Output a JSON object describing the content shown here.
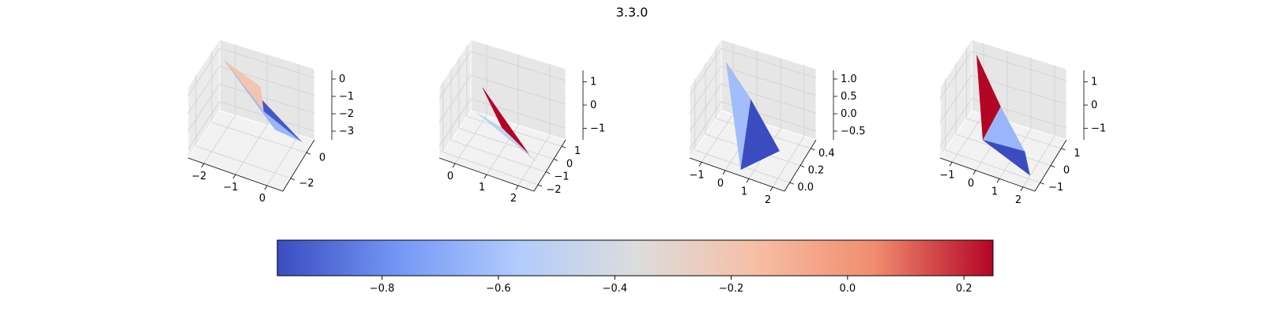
{
  "figure_title": "3.3.0",
  "colormap": "coolwarm",
  "colors": {
    "cmap_stops": [
      "#3b4cc0",
      "#7396f5",
      "#b0cbfc",
      "#dcdddd",
      "#f6bfa6",
      "#f18d6f",
      "#b40426"
    ],
    "pane": "#f2f2f2",
    "grid": "#d0d0d0"
  },
  "chart_data": [
    {
      "type": "surface",
      "panel": 1,
      "x_ticks": [
        "−2",
        "−1",
        "0"
      ],
      "y_ticks": [
        "−2",
        "0"
      ],
      "z_ticks": [
        "0",
        "−1",
        "−2",
        "−3"
      ],
      "zlim": [
        -3.2,
        0.6
      ],
      "faces": [
        {
          "color_value": -0.65,
          "vertices": [
            [
              -2.2,
              -0.8,
              -0.2
            ],
            [
              0.8,
              -2.7,
              -0.3
            ],
            [
              0.9,
              -1.0,
              -2.8
            ]
          ]
        },
        {
          "color_value": -0.95,
          "vertices": [
            [
              -2.2,
              -0.8,
              -0.2
            ],
            [
              -0.2,
              -1.7,
              -0.9
            ],
            [
              0.9,
              -1.0,
              -2.8
            ]
          ]
        },
        {
          "color_value": -0.2,
          "vertices": [
            [
              -2.2,
              -0.8,
              -0.2
            ],
            [
              -0.6,
              -1.2,
              -0.35
            ],
            [
              -0.2,
              -1.7,
              -0.9
            ]
          ]
        }
      ]
    },
    {
      "type": "surface",
      "panel": 2,
      "x_ticks": [
        "0",
        "1",
        "2"
      ],
      "y_ticks": [
        "−2",
        "−1",
        "0",
        "1"
      ],
      "z_ticks": [
        "1",
        "0",
        "−1"
      ],
      "zlim": [
        -1.4,
        1.4
      ],
      "faces": [
        {
          "color_value": 0.25,
          "vertices": [
            [
              0.2,
              -0.6,
              1.3
            ],
            [
              1.8,
              -1.0,
              -0.2
            ],
            [
              0.4,
              0.2,
              -1.0
            ]
          ]
        },
        {
          "color_value": -0.3,
          "vertices": [
            [
              0.4,
              0.2,
              -1.0
            ],
            [
              1.7,
              -0.4,
              -1.1
            ],
            [
              1.8,
              -1.0,
              -0.2
            ]
          ]
        },
        {
          "color_value": -0.5,
          "vertices": [
            [
              -0.6,
              0.6,
              -1.2
            ],
            [
              0.4,
              0.2,
              -1.0
            ],
            [
              1.7,
              -0.4,
              -1.1
            ]
          ]
        }
      ]
    },
    {
      "type": "surface",
      "panel": 3,
      "x_ticks": [
        "−1",
        "0",
        "1",
        "2"
      ],
      "y_ticks": [
        "0.0",
        "0.2",
        "0.4"
      ],
      "z_ticks": [
        "1.0",
        "0.5",
        "0.0",
        "−0.5"
      ],
      "zlim": [
        -0.9,
        1.2
      ],
      "faces": [
        {
          "color_value": 0.25,
          "vertices": [
            [
              -1.1,
              0.35,
              0.7
            ],
            [
              0.0,
              0.2,
              0.65
            ],
            [
              0.2,
              0.25,
              0.35
            ]
          ]
        },
        {
          "color_value": -0.62,
          "vertices": [
            [
              -1.1,
              0.35,
              0.7
            ],
            [
              0.2,
              0.25,
              0.35
            ],
            [
              0.5,
              0.05,
              -0.85
            ]
          ]
        },
        {
          "color_value": -0.98,
          "vertices": [
            [
              0.2,
              0.25,
              0.35
            ],
            [
              2.0,
              0.05,
              0.1
            ],
            [
              0.5,
              0.05,
              -0.85
            ]
          ]
        }
      ]
    },
    {
      "type": "surface",
      "panel": 4,
      "x_ticks": [
        "−1",
        "0",
        "1",
        "2"
      ],
      "y_ticks": [
        "−1",
        "0",
        "1"
      ],
      "z_ticks": [
        "1",
        "0",
        "−1"
      ],
      "zlim": [
        -1.5,
        1.5
      ],
      "faces": [
        {
          "color_value": 0.25,
          "vertices": [
            [
              -1.2,
              0.6,
              1.1
            ],
            [
              0.3,
              -0.2,
              0.15
            ],
            [
              -0.4,
              -0.3,
              -1.4
            ]
          ]
        },
        {
          "color_value": -0.65,
          "vertices": [
            [
              0.3,
              -0.2,
              0.15
            ],
            [
              -0.4,
              -0.3,
              -1.4
            ],
            [
              1.8,
              -1.0,
              -0.5
            ]
          ]
        },
        {
          "color_value": -0.98,
          "vertices": [
            [
              -0.4,
              -0.3,
              -1.4
            ],
            [
              1.8,
              -1.0,
              -0.5
            ],
            [
              2.2,
              -1.3,
              -1.1
            ]
          ]
        }
      ]
    }
  ],
  "colorbar": {
    "vmin": -0.98,
    "vmax": 0.25,
    "ticks": [
      -0.8,
      -0.6,
      -0.4,
      -0.2,
      0.0,
      0.2
    ],
    "tick_labels": [
      "−0.8",
      "−0.6",
      "−0.4",
      "−0.2",
      "0.0",
      "0.2"
    ],
    "orientation": "horizontal"
  }
}
